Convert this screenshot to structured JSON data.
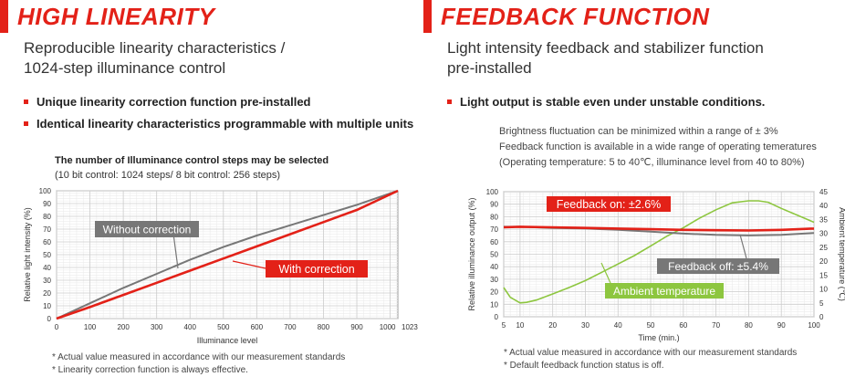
{
  "left": {
    "title": "HIGH LINEARITY",
    "subtitle": "Reproducible linearity characteristics /\n1024-step illuminance control",
    "bullets": [
      "Unique linearity correction function pre-installed",
      "Identical linearity characteristics programmable with multiple units"
    ],
    "note_title": "The number of Illuminance control steps may be selected",
    "note_sub": "(10 bit control: 1024 steps/ 8 bit control: 256 steps)",
    "footnotes": [
      "* Actual value measured in accordance with our measurement standards",
      "* Linearity correction function is always effective."
    ]
  },
  "right": {
    "title": "FEEDBACK FUNCTION",
    "subtitle": "Light intensity feedback and stabilizer function\npre-installed",
    "bullets": [
      "Light output is stable even under unstable conditions."
    ],
    "desc": [
      "Brightness fluctuation can be minimized within a range of ± 3%",
      "Feedback function is available in a wide range of operating temeratures",
      "(Operating temperature: 5 to 40℃, illuminance level from 40 to 80%)"
    ],
    "footnotes": [
      "* Actual value measured in accordance with our measurement standards",
      "* Default feedback function status is off."
    ]
  },
  "colors": {
    "red": "#e32118",
    "gray": "#777777",
    "green": "#8dc63f",
    "grid": "#cccccc"
  },
  "chart_data": [
    {
      "type": "line",
      "xlabel": "Illuminance level",
      "ylabel": "Relative light intensity (%)",
      "xlim": [
        0,
        1023
      ],
      "ylim": [
        0,
        100
      ],
      "xticks": [
        0,
        100,
        200,
        300,
        400,
        500,
        600,
        700,
        800,
        900,
        1000,
        1023
      ],
      "yticks": [
        0,
        10,
        20,
        30,
        40,
        50,
        60,
        70,
        80,
        90,
        100
      ],
      "grid": true,
      "series": [
        {
          "name": "Without correction",
          "color": "#777777",
          "x": [
            0,
            100,
            200,
            300,
            400,
            500,
            600,
            700,
            800,
            900,
            1023
          ],
          "y": [
            0,
            12,
            24,
            35,
            46,
            56,
            65,
            73,
            81,
            89,
            100
          ]
        },
        {
          "name": "With correction",
          "color": "#e32118",
          "x": [
            0,
            100,
            200,
            300,
            400,
            500,
            600,
            700,
            800,
            900,
            1023
          ],
          "y": [
            0,
            9,
            18.5,
            28,
            37.5,
            47,
            56.5,
            66,
            75.5,
            85,
            100
          ]
        }
      ]
    },
    {
      "type": "line",
      "xlabel": "Time (min.)",
      "ylabel": "Relative illuminance output (%)",
      "y2label": "Ambient temperature (℃)",
      "xlim": [
        5,
        100
      ],
      "ylim": [
        0,
        100
      ],
      "y2lim": [
        0,
        45
      ],
      "xticks": [
        5,
        10,
        20,
        30,
        40,
        50,
        60,
        70,
        80,
        90,
        100
      ],
      "yticks": [
        0,
        10,
        20,
        30,
        40,
        50,
        60,
        70,
        80,
        90,
        100
      ],
      "y2ticks": [
        0,
        5,
        10,
        15,
        20,
        25,
        30,
        35,
        40,
        45
      ],
      "grid": true,
      "series": [
        {
          "name": "Feedback on: ±2.6%",
          "color": "#e32118",
          "axis": "left",
          "x": [
            5,
            10,
            20,
            30,
            40,
            50,
            60,
            70,
            80,
            90,
            100
          ],
          "y": [
            71.5,
            72,
            71.5,
            71,
            70.5,
            70,
            69.5,
            69.2,
            69,
            69.5,
            70.5
          ]
        },
        {
          "name": "Feedback off: ±5.4%",
          "color": "#777777",
          "axis": "left",
          "x": [
            5,
            10,
            20,
            30,
            40,
            50,
            60,
            70,
            80,
            90,
            100
          ],
          "y": [
            72,
            72,
            71,
            70.5,
            69.5,
            68,
            66.5,
            65.5,
            65,
            65.5,
            67
          ]
        },
        {
          "name": "Ambient temperature",
          "color": "#8dc63f",
          "axis": "right",
          "x": [
            5,
            7,
            10,
            12,
            15,
            20,
            25,
            30,
            35,
            40,
            45,
            50,
            55,
            60,
            65,
            70,
            75,
            80,
            83,
            86,
            90,
            95,
            100
          ],
          "y": [
            10.5,
            7,
            5,
            5.2,
            6,
            8.2,
            10.5,
            13,
            16,
            19,
            22,
            25.5,
            29,
            32,
            35.5,
            38.5,
            41,
            41.7,
            41.7,
            41.2,
            39,
            36.5,
            34
          ]
        }
      ]
    }
  ]
}
